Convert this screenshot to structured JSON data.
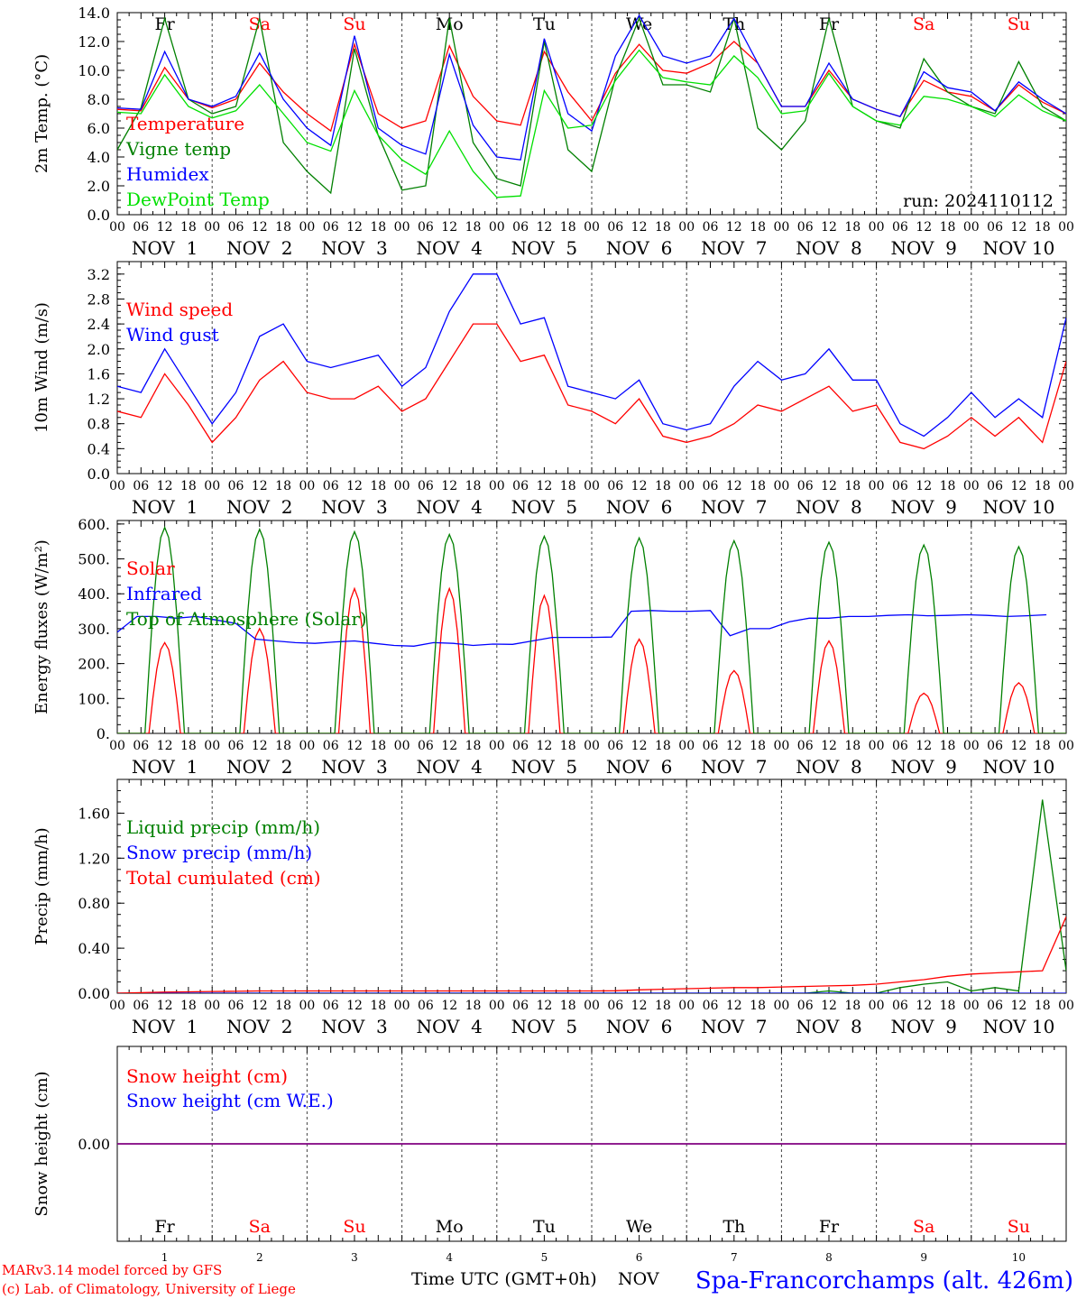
{
  "header": {
    "run_label": "run: 2024110112"
  },
  "footer": {
    "model_line1": "MARv3.14 model forced by GFS",
    "model_line2": "(c) Lab. of Climatology, University of Liege",
    "time_axis_label": "Time UTC (GMT+0h)",
    "month": "NOV",
    "station": "Spa-Francorchamps (alt. 426m)"
  },
  "colors": {
    "red": "#ff0000",
    "green": "#008000",
    "blue": "#0000ff",
    "light_green": "#00e000",
    "purple": "#800080",
    "weekend": "#ff0000",
    "weekday": "#000000"
  },
  "days": [
    {
      "abbr": "Fr",
      "num": "1",
      "label": "NOV  1",
      "weekend": false
    },
    {
      "abbr": "Sa",
      "num": "2",
      "label": "NOV  2",
      "weekend": true
    },
    {
      "abbr": "Su",
      "num": "3",
      "label": "NOV  3",
      "weekend": true
    },
    {
      "abbr": "Mo",
      "num": "4",
      "label": "NOV  4",
      "weekend": false
    },
    {
      "abbr": "Tu",
      "num": "5",
      "label": "NOV  5",
      "weekend": false
    },
    {
      "abbr": "We",
      "num": "6",
      "label": "NOV  6",
      "weekend": false
    },
    {
      "abbr": "Th",
      "num": "7",
      "label": "NOV  7",
      "weekend": false
    },
    {
      "abbr": "Fr",
      "num": "8",
      "label": "NOV  8",
      "weekend": false
    },
    {
      "abbr": "Sa",
      "num": "9",
      "label": "NOV  9",
      "weekend": true
    },
    {
      "abbr": "Su",
      "num": "10",
      "label": "NOV 10",
      "weekend": true
    }
  ],
  "hour_ticks": [
    "00",
    "06",
    "12",
    "18"
  ],
  "final_tick": "00",
  "chart_data": [
    {
      "id": "temp",
      "type": "line",
      "ylabel": "2m Temp. (°C)",
      "ylim": [
        0,
        14
      ],
      "yticks": [
        "0.0",
        "2.0",
        "4.0",
        "6.0",
        "8.0",
        "10.0",
        "12.0",
        "14.0"
      ],
      "x": "hours since NOV 1 00 UTC (step 6h)",
      "show_day_abbr": true,
      "series": [
        {
          "name": "Temperature",
          "color": "red",
          "values": [
            7.3,
            7.2,
            10.2,
            8.0,
            7.4,
            8.0,
            10.5,
            8.5,
            7.0,
            5.8,
            11.8,
            7.0,
            6.0,
            6.5,
            11.7,
            8.2,
            6.5,
            6.2,
            11.3,
            8.5,
            6.5,
            9.8,
            11.8,
            10.0,
            9.8,
            10.5,
            12.0,
            10.5,
            7.5,
            7.5,
            10.0,
            8.0,
            7.3,
            6.8,
            9.3,
            8.5,
            8.2,
            7.2,
            9.0,
            7.8,
            7.0
          ]
        },
        {
          "name": "Vigne temp",
          "color": "green",
          "values": [
            4.5,
            7.4,
            13.6,
            8.0,
            7.0,
            7.5,
            13.6,
            5.0,
            3.0,
            1.5,
            11.5,
            5.5,
            1.7,
            2.0,
            13.6,
            5.0,
            2.5,
            2.0,
            12.0,
            4.5,
            3.0,
            9.5,
            13.6,
            9.0,
            9.0,
            8.5,
            13.6,
            6.0,
            4.5,
            6.5,
            13.6,
            7.5,
            6.5,
            6.0,
            10.8,
            8.5,
            7.5,
            7.0,
            10.6,
            7.5,
            6.5
          ]
        },
        {
          "name": "Humidex",
          "color": "blue",
          "values": [
            7.4,
            7.3,
            11.3,
            8.0,
            7.5,
            8.2,
            11.2,
            8.0,
            6.0,
            4.8,
            12.4,
            6.0,
            4.8,
            4.2,
            11.1,
            6.2,
            4.0,
            3.8,
            12.2,
            7.0,
            5.8,
            11.0,
            13.8,
            11.0,
            10.5,
            11.0,
            13.6,
            10.5,
            7.5,
            7.5,
            10.5,
            8.0,
            7.3,
            6.8,
            9.9,
            8.8,
            8.5,
            7.2,
            9.2,
            8.0,
            7.0
          ]
        },
        {
          "name": "DewPoint Temp",
          "color": "light_green",
          "values": [
            7.1,
            7.0,
            9.7,
            7.5,
            6.7,
            7.2,
            9.0,
            7.0,
            5.0,
            4.4,
            8.6,
            5.5,
            3.8,
            2.8,
            5.8,
            3.0,
            1.2,
            1.3,
            8.6,
            6.0,
            6.2,
            9.3,
            11.4,
            9.5,
            9.2,
            9.0,
            11.0,
            9.5,
            7.0,
            7.2,
            9.8,
            7.5,
            6.5,
            6.2,
            8.2,
            8.0,
            7.5,
            6.8,
            8.3,
            7.2,
            6.5
          ]
        }
      ]
    },
    {
      "id": "wind",
      "type": "line",
      "ylabel": "10m Wind (m/s)",
      "ylim": [
        0,
        3.4
      ],
      "yticks": [
        "0.0",
        "0.4",
        "0.8",
        "1.2",
        "1.6",
        "2.0",
        "2.4",
        "2.8",
        "3.2"
      ],
      "x": "hours since NOV 1 00 UTC (step 6h)",
      "show_day_abbr": false,
      "series": [
        {
          "name": "Wind speed",
          "color": "red",
          "values": [
            1.0,
            0.9,
            1.6,
            1.1,
            0.5,
            0.9,
            1.5,
            1.8,
            1.3,
            1.2,
            1.2,
            1.4,
            1.0,
            1.2,
            1.8,
            2.4,
            2.4,
            1.8,
            1.9,
            1.1,
            1.0,
            0.8,
            1.2,
            0.6,
            0.5,
            0.6,
            0.8,
            1.1,
            1.0,
            1.2,
            1.4,
            1.0,
            1.1,
            0.5,
            0.4,
            0.6,
            0.9,
            0.6,
            0.9,
            0.5,
            1.8
          ]
        },
        {
          "name": "Wind gust",
          "color": "blue",
          "values": [
            1.4,
            1.3,
            2.0,
            1.4,
            0.8,
            1.3,
            2.2,
            2.4,
            1.8,
            1.7,
            1.8,
            1.9,
            1.4,
            1.7,
            2.6,
            3.2,
            3.2,
            2.4,
            2.5,
            1.4,
            1.3,
            1.2,
            1.5,
            0.8,
            0.7,
            0.8,
            1.4,
            1.8,
            1.5,
            1.6,
            2.0,
            1.5,
            1.5,
            0.8,
            0.6,
            0.9,
            1.3,
            0.9,
            1.2,
            0.9,
            2.5
          ]
        }
      ]
    },
    {
      "id": "energy",
      "type": "line",
      "ylabel": "Energy fluxes (W/m²)",
      "ylim": [
        0,
        610
      ],
      "yticks": [
        "0.",
        "100.",
        "200.",
        "300.",
        "400.",
        "500.",
        "600."
      ],
      "x": "hours since NOV 1 00 UTC (step 3h)",
      "show_day_abbr": false,
      "series": [
        {
          "name": "Solar",
          "color": "red",
          "peaks": [
            260,
            300,
            415,
            415,
            395,
            270,
            180,
            265,
            115,
            145
          ]
        },
        {
          "name": "Infrared",
          "color": "blue",
          "values": [
            290,
            335,
            335,
            330,
            335,
            325,
            315,
            270,
            265,
            260,
            258,
            262,
            265,
            258,
            252,
            250,
            260,
            258,
            252,
            256,
            255,
            265,
            275,
            275,
            275,
            276,
            350,
            352,
            350,
            350,
            352,
            280,
            300,
            300,
            320,
            330,
            330,
            335,
            335,
            338,
            340,
            337,
            338,
            340,
            338,
            335,
            337,
            340
          ]
        },
        {
          "name": "Top of Atmosphere (Solar)",
          "color": "green",
          "peaks": [
            590,
            585,
            578,
            570,
            565,
            560,
            552,
            548,
            540,
            535
          ]
        }
      ]
    },
    {
      "id": "precip",
      "type": "line",
      "ylabel": "Precip (mm/h)",
      "ylim": [
        0,
        1.9
      ],
      "yticks": [
        "0.00",
        "0.40",
        "0.80",
        "1.20",
        "1.60"
      ],
      "x": "hours since NOV 1 00 UTC (step 6h)",
      "show_day_abbr": false,
      "series": [
        {
          "name": "Liquid precip (mm/h)",
          "color": "green",
          "values": [
            0,
            0,
            0,
            0,
            0,
            0,
            0,
            0,
            0,
            0,
            0,
            0,
            0,
            0,
            0,
            0,
            0,
            0,
            0,
            0,
            0,
            0,
            0,
            0,
            0,
            0,
            0,
            0,
            0,
            0,
            0.02,
            0,
            0,
            0.05,
            0.08,
            0.1,
            0.02,
            0.05,
            0.02,
            1.72,
            0.2
          ]
        },
        {
          "name": "Snow precip (mm/h)",
          "color": "blue",
          "values": [
            0,
            0,
            0,
            0,
            0,
            0,
            0,
            0,
            0,
            0,
            0,
            0,
            0,
            0,
            0,
            0,
            0,
            0,
            0,
            0,
            0,
            0,
            0,
            0,
            0,
            0,
            0,
            0,
            0,
            0,
            0,
            0,
            0,
            0,
            0,
            0,
            0,
            0,
            0,
            0,
            0
          ]
        },
        {
          "name": "Total cumulated (cm)",
          "color": "red",
          "values": [
            0.0,
            0.005,
            0.01,
            0.012,
            0.015,
            0.017,
            0.02,
            0.02,
            0.02,
            0.02,
            0.02,
            0.02,
            0.02,
            0.02,
            0.02,
            0.02,
            0.02,
            0.02,
            0.02,
            0.02,
            0.02,
            0.022,
            0.03,
            0.035,
            0.04,
            0.045,
            0.05,
            0.05,
            0.055,
            0.06,
            0.065,
            0.07,
            0.08,
            0.1,
            0.12,
            0.15,
            0.17,
            0.18,
            0.19,
            0.2,
            0.68
          ]
        }
      ]
    },
    {
      "id": "snow",
      "type": "line",
      "ylabel": "Snow height (cm)",
      "ylim": [
        -1,
        1
      ],
      "yticks": [
        "0.00"
      ],
      "x": "hours since NOV 1 00 UTC (step 6h)",
      "show_day_abbr": true,
      "series": [
        {
          "name": "Snow height (cm)",
          "color": "red",
          "values": [
            0,
            0
          ]
        },
        {
          "name": "Snow height (cm W.E.)",
          "color": "blue",
          "values": [
            0,
            0
          ]
        }
      ]
    }
  ]
}
